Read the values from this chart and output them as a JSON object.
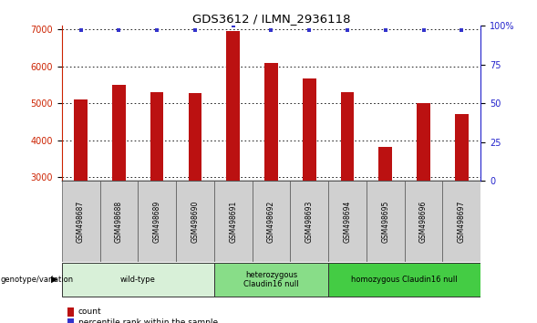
{
  "title": "GDS3612 / ILMN_2936118",
  "samples": [
    "GSM498687",
    "GSM498688",
    "GSM498689",
    "GSM498690",
    "GSM498691",
    "GSM498692",
    "GSM498693",
    "GSM498694",
    "GSM498695",
    "GSM498696",
    "GSM498697"
  ],
  "counts": [
    5100,
    5500,
    5300,
    5280,
    6950,
    6100,
    5680,
    5300,
    3820,
    5000,
    4700
  ],
  "percentile_ranks": [
    97,
    97,
    97,
    97,
    100,
    97,
    97,
    97,
    97,
    97,
    97
  ],
  "bar_color": "#bb1111",
  "dot_color": "#3333cc",
  "ylim_left": [
    2900,
    7100
  ],
  "yticks_left": [
    3000,
    4000,
    5000,
    6000,
    7000
  ],
  "ylim_right": [
    0,
    100
  ],
  "yticks_right": [
    0,
    25,
    50,
    75,
    100
  ],
  "ytick_right_labels": [
    "0",
    "25",
    "50",
    "75",
    "100%"
  ],
  "groups": [
    {
      "label": "wild-type",
      "start": 0,
      "end": 3,
      "color": "#d8f0d8"
    },
    {
      "label": "heterozygous\nClaudin16 null",
      "start": 4,
      "end": 6,
      "color": "#88dd88"
    },
    {
      "label": "homozygous Claudin16 null",
      "start": 7,
      "end": 10,
      "color": "#44cc44"
    }
  ],
  "genotype_label": "genotype/variation",
  "legend_count_label": "count",
  "legend_percentile_label": "percentile rank within the sample",
  "background_color": "#ffffff",
  "plot_bg_color": "#ffffff",
  "grid_color": "#000000",
  "tick_label_color_left": "#cc2200",
  "tick_label_color_right": "#2222cc",
  "sample_box_color": "#d0d0d0",
  "bar_width": 0.35
}
